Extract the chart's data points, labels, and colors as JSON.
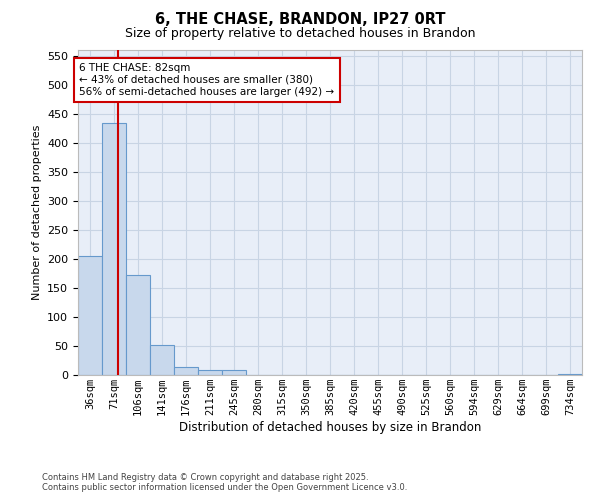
{
  "title": "6, THE CHASE, BRANDON, IP27 0RT",
  "subtitle": "Size of property relative to detached houses in Brandon",
  "xlabel": "Distribution of detached houses by size in Brandon",
  "ylabel": "Number of detached properties",
  "bin_labels": [
    "36sqm",
    "71sqm",
    "106sqm",
    "141sqm",
    "176sqm",
    "211sqm",
    "245sqm",
    "280sqm",
    "315sqm",
    "350sqm",
    "385sqm",
    "420sqm",
    "455sqm",
    "490sqm",
    "525sqm",
    "560sqm",
    "594sqm",
    "629sqm",
    "664sqm",
    "699sqm",
    "734sqm"
  ],
  "bar_heights": [
    205,
    435,
    172,
    52,
    13,
    8,
    9,
    0,
    0,
    0,
    0,
    0,
    0,
    0,
    0,
    0,
    0,
    0,
    0,
    0,
    2
  ],
  "bar_color": "#c8d8ec",
  "bar_edge_color": "#6699cc",
  "grid_color": "#c8d4e4",
  "property_sqm_bin": 1.65,
  "red_line_color": "#cc0000",
  "annotation_text": "6 THE CHASE: 82sqm\n← 43% of detached houses are smaller (380)\n56% of semi-detached houses are larger (492) →",
  "annotation_box_color": "#cc0000",
  "ylim": [
    0,
    560
  ],
  "yticks": [
    0,
    50,
    100,
    150,
    200,
    250,
    300,
    350,
    400,
    450,
    500,
    550
  ],
  "footer_line1": "Contains HM Land Registry data © Crown copyright and database right 2025.",
  "footer_line2": "Contains public sector information licensed under the Open Government Licence v3.0.",
  "background_color": "#e8eef8"
}
